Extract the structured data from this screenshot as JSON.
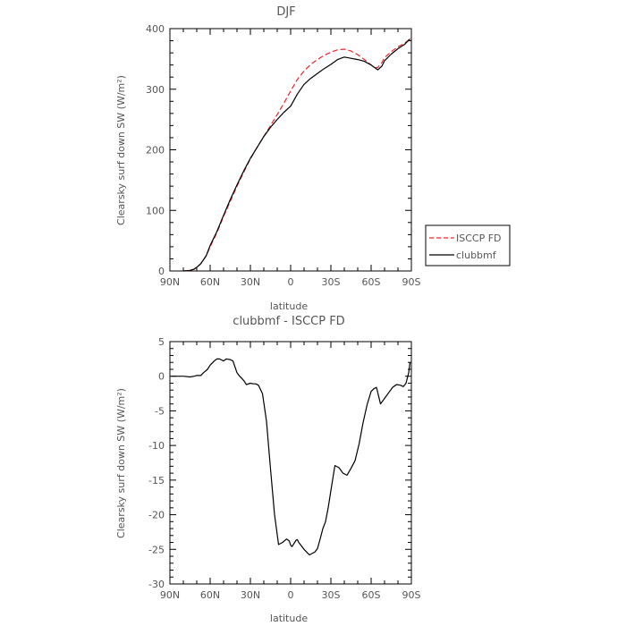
{
  "chart_data": [
    {
      "type": "line",
      "title": "DJF",
      "xlabel": "latitude",
      "ylabel": "Clearsky surf down SW (W/m²)",
      "xlim": [
        90,
        -90
      ],
      "ylim": [
        0,
        400
      ],
      "x_ticks": [
        90,
        60,
        30,
        0,
        -30,
        -60,
        -90
      ],
      "x_tick_labels": [
        "90N",
        "60N",
        "30N",
        "0",
        "30S",
        "60S",
        "90S"
      ],
      "y_ticks": [
        0,
        100,
        200,
        300,
        400
      ],
      "y_tick_labels": [
        "0",
        "100",
        "200",
        "300",
        "400"
      ],
      "legend_position": "right",
      "series": [
        {
          "name": "ISCCP FD",
          "color": "#e8262b",
          "dash": "dashed",
          "x": [
            80,
            75,
            72,
            70,
            67,
            63,
            60,
            55,
            50,
            45,
            40,
            35,
            30,
            25,
            20,
            15,
            10,
            5,
            0,
            -5,
            -10,
            -15,
            -20,
            -25,
            -30,
            -35,
            -40,
            -45,
            -50,
            -55,
            -60,
            -63,
            -65,
            -68,
            -70,
            -75,
            -80,
            -85,
            -89
          ],
          "y": [
            0,
            1,
            3,
            6,
            12,
            25,
            40,
            63,
            90,
            115,
            140,
            163,
            185,
            204,
            222,
            240,
            258,
            277,
            297,
            316,
            330,
            341,
            349,
            356,
            361,
            365,
            366,
            363,
            357,
            349,
            340,
            335,
            336,
            344,
            352,
            362,
            370,
            376,
            383
          ]
        },
        {
          "name": "clubbmf",
          "color": "#000000",
          "dash": "solid",
          "x": [
            80,
            75,
            72,
            70,
            67,
            63,
            60,
            55,
            50,
            45,
            40,
            35,
            30,
            25,
            20,
            15,
            10,
            5,
            0,
            -5,
            -10,
            -15,
            -20,
            -25,
            -30,
            -35,
            -40,
            -45,
            -50,
            -55,
            -60,
            -63,
            -65,
            -68,
            -70,
            -75,
            -80,
            -85,
            -89
          ],
          "y": [
            0,
            1,
            3,
            6,
            12,
            25,
            42,
            65,
            92,
            118,
            142,
            165,
            186,
            204,
            222,
            237,
            250,
            262,
            272,
            292,
            308,
            318,
            326,
            334,
            341,
            349,
            353,
            351,
            349,
            346,
            340,
            335,
            332,
            338,
            347,
            358,
            367,
            374,
            383
          ]
        }
      ]
    },
    {
      "type": "line",
      "title": "clubbmf - ISCCP FD",
      "xlabel": "latitude",
      "ylabel": "Clearsky surf down SW (W/m²)",
      "xlim": [
        90,
        -90
      ],
      "ylim": [
        -30,
        5
      ],
      "x_ticks": [
        90,
        60,
        30,
        0,
        -30,
        -60,
        -90
      ],
      "x_tick_labels": [
        "90N",
        "60N",
        "30N",
        "0",
        "30S",
        "60S",
        "90S"
      ],
      "y_ticks": [
        5,
        0,
        -5,
        -10,
        -15,
        -20,
        -25,
        -30
      ],
      "y_tick_labels": [
        "5",
        "0",
        "-5",
        "-10",
        "-15",
        "-20",
        "-25",
        "-30"
      ],
      "series": [
        {
          "name": "clubbmf",
          "color": "#000000",
          "dash": "solid",
          "x": [
            89,
            85,
            80,
            75,
            72,
            70,
            67,
            65,
            62,
            60,
            57,
            55,
            53,
            50,
            48,
            45,
            43,
            40,
            38,
            35,
            33,
            30,
            28,
            26,
            24,
            21,
            18,
            15,
            12,
            9,
            6,
            3,
            1,
            0,
            -1,
            -2,
            -3,
            -4,
            -5,
            -6,
            -8,
            -10,
            -12,
            -14,
            -16,
            -18,
            -20,
            -22,
            -24,
            -26,
            -28,
            -30,
            -33,
            -36,
            -39,
            -42,
            -45,
            -48,
            -51,
            -54,
            -57,
            -60,
            -62,
            -64,
            -67,
            -70,
            -73,
            -76,
            -79,
            -82,
            -84,
            -86,
            -88,
            -89
          ],
          "y": [
            0,
            0,
            0,
            -0.1,
            0,
            0.1,
            0.1,
            0.5,
            1.0,
            1.6,
            2.2,
            2.5,
            2.5,
            2.2,
            2.5,
            2.4,
            2.2,
            0.5,
            0,
            -0.6,
            -1.2,
            -1.0,
            -1.1,
            -1.1,
            -1.3,
            -2.5,
            -6.5,
            -13.4,
            -20.0,
            -24.3,
            -24.0,
            -23.5,
            -23.8,
            -24.4,
            -24.6,
            -24.3,
            -24.0,
            -23.7,
            -23.6,
            -24.0,
            -24.5,
            -25.0,
            -25.4,
            -25.8,
            -25.6,
            -25.4,
            -24.9,
            -23.5,
            -22.0,
            -21.0,
            -19.0,
            -16.5,
            -12.9,
            -13.2,
            -14.0,
            -14.3,
            -13.3,
            -12.2,
            -9.8,
            -6.7,
            -4.1,
            -2.2,
            -1.8,
            -1.6,
            -4.0,
            -3.2,
            -2.4,
            -1.6,
            -1.2,
            -1.3,
            -1.5,
            -1.0,
            0.5,
            2.0
          ]
        }
      ]
    }
  ]
}
